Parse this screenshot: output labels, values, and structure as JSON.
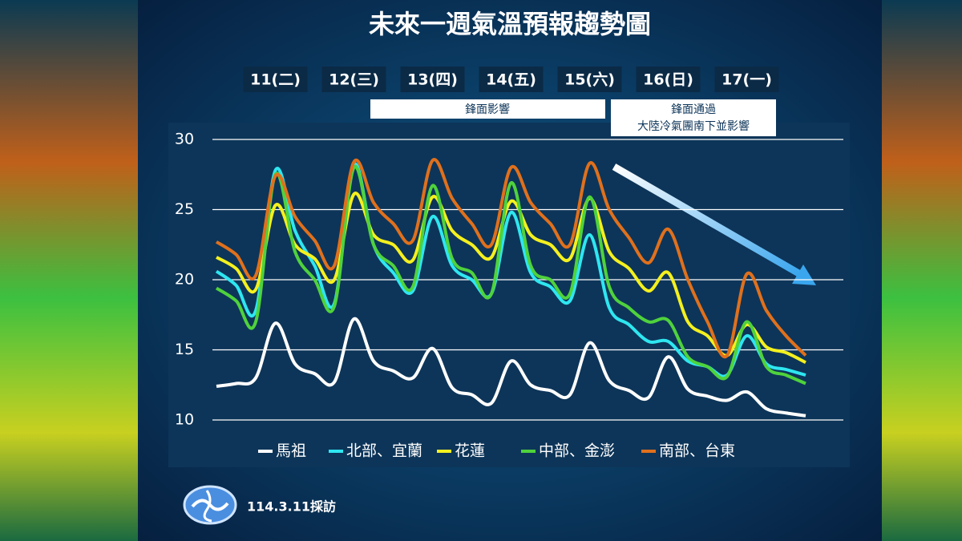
{
  "chart_data": {
    "type": "line",
    "title": "未來一週氣溫預報趨勢圖",
    "categories": [
      null,
      null,
      null,
      "11(二)",
      null,
      null,
      null,
      "12(三)",
      null,
      null,
      null,
      "13(四)",
      null,
      null,
      null,
      "14(五)",
      null,
      null,
      null,
      "15(六)",
      null,
      null,
      null,
      "16(日)",
      null,
      null,
      null,
      "17(一)",
      null,
      null,
      null
    ],
    "annotations": [
      "鋒面影響",
      [
        "鋒面通過",
        "大陸冷氣團南下並影響"
      ]
    ],
    "footer": "114.3.11採訪",
    "ylim": [
      10,
      30
    ],
    "yticks": [
      10,
      15,
      20,
      25,
      30
    ],
    "grid": true,
    "legend": "bottom",
    "series": [
      {
        "name": "馬祖",
        "color": "#ffffff",
        "values": [
          12.4,
          12.6,
          13.0,
          16.9,
          14.0,
          13.3,
          12.7,
          17.2,
          14.2,
          13.5,
          13.0,
          15.1,
          12.3,
          11.8,
          11.2,
          14.2,
          12.5,
          12.1,
          11.8,
          15.5,
          12.8,
          12.1,
          11.6,
          14.5,
          12.2,
          11.7,
          11.4,
          12.0,
          10.8,
          10.5,
          10.3
        ]
      },
      {
        "name": "北部、宜蘭",
        "color": "#2ee6f0",
        "values": [
          20.6,
          19.6,
          17.8,
          27.8,
          23.5,
          21.0,
          18.3,
          28.2,
          22.5,
          20.5,
          19.2,
          24.5,
          21.0,
          20.0,
          19.0,
          24.8,
          20.5,
          19.5,
          18.5,
          23.2,
          18.0,
          16.8,
          15.6,
          15.6,
          14.2,
          13.8,
          13.2,
          16.0,
          14.0,
          13.6,
          13.2
        ]
      },
      {
        "name": "花蓮",
        "color": "#f4f01e",
        "values": [
          21.6,
          20.8,
          19.3,
          25.3,
          22.5,
          21.5,
          20.0,
          26.1,
          23.2,
          22.5,
          21.4,
          25.9,
          23.5,
          22.5,
          21.6,
          25.6,
          23.2,
          22.5,
          21.5,
          25.8,
          22.0,
          20.8,
          19.2,
          20.5,
          17.0,
          16.0,
          14.6,
          16.8,
          15.2,
          14.8,
          14.1
        ]
      },
      {
        "name": "中部、金澎",
        "color": "#4fd23c",
        "values": [
          19.4,
          18.5,
          17.0,
          27.5,
          22.0,
          20.0,
          18.1,
          28.0,
          22.5,
          21.0,
          19.5,
          26.7,
          21.5,
          20.5,
          19.0,
          26.9,
          21.0,
          20.0,
          19.0,
          25.9,
          19.5,
          18.0,
          17.0,
          17.1,
          14.5,
          13.8,
          13.1,
          17.0,
          13.8,
          13.2,
          12.6
        ]
      },
      {
        "name": "南部、台東",
        "color": "#e0701c",
        "values": [
          22.7,
          21.8,
          20.3,
          27.4,
          24.5,
          22.8,
          21.0,
          28.4,
          25.5,
          24.0,
          22.8,
          28.5,
          25.8,
          24.0,
          22.5,
          28.0,
          25.5,
          24.0,
          22.5,
          28.3,
          25.0,
          23.0,
          21.2,
          23.6,
          20.0,
          17.0,
          14.6,
          20.4,
          17.8,
          16.0,
          14.6
        ]
      }
    ]
  }
}
